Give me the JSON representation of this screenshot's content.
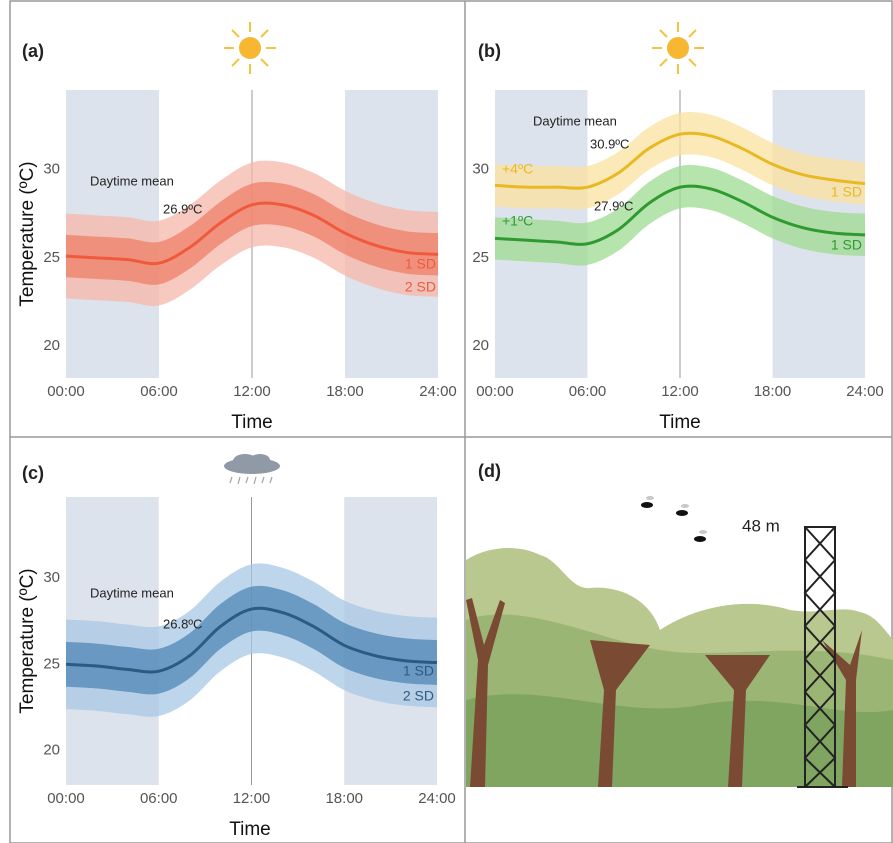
{
  "chart_data": [
    {
      "type": "line",
      "panel_label": "(a)",
      "y_label": "Temperature (ºC)",
      "x_label": "Time",
      "x": [
        0,
        2,
        4,
        6,
        8,
        10,
        12,
        14,
        16,
        18,
        20,
        22,
        24
      ],
      "xlim": [
        0,
        24
      ],
      "ylim": [
        18.2,
        34.5
      ],
      "xticks": [
        {
          "value": 0,
          "label": "00:00"
        },
        {
          "value": 6,
          "label": "06:00"
        },
        {
          "value": 12,
          "label": "12:00"
        },
        {
          "value": 18,
          "label": "18:00"
        },
        {
          "value": 24,
          "label": "24:00"
        }
      ],
      "yticks": [
        20,
        25,
        30
      ],
      "shading": [
        [
          0,
          6
        ],
        [
          18,
          24
        ]
      ],
      "shading_color": "#dde3ec",
      "vline": 12,
      "annotations": [
        "Daytime mean",
        "26.9ºC"
      ],
      "series": [
        {
          "color": "#f05a3c",
          "values": [
            25.1,
            25.0,
            24.9,
            24.7,
            25.6,
            27.0,
            28.0,
            28.0,
            27.4,
            26.4,
            25.7,
            25.3,
            25.2
          ],
          "bands": [
            {
              "name": "1 SD",
              "color": "#ef7f68",
              "lower": [
                23.9,
                23.8,
                23.7,
                23.5,
                24.4,
                25.8,
                26.8,
                26.8,
                26.2,
                25.2,
                24.5,
                24.1,
                24.0
              ],
              "upper": [
                26.3,
                26.2,
                26.1,
                25.9,
                26.8,
                28.2,
                29.2,
                29.2,
                28.6,
                27.6,
                26.9,
                26.5,
                26.4
              ]
            },
            {
              "name": "2 SD",
              "color": "#f6b7a8",
              "lower": [
                22.7,
                22.6,
                22.5,
                22.3,
                23.2,
                24.6,
                25.6,
                25.6,
                25.0,
                24.0,
                23.3,
                22.9,
                22.8
              ],
              "upper": [
                27.5,
                27.4,
                27.3,
                27.1,
                28.0,
                29.4,
                30.4,
                30.4,
                29.8,
                28.8,
                28.1,
                27.7,
                27.6
              ]
            }
          ]
        }
      ]
    },
    {
      "type": "line",
      "panel_label": "(b)",
      "x_label": "Time",
      "x": [
        0,
        2,
        4,
        6,
        8,
        10,
        12,
        14,
        16,
        18,
        20,
        22,
        24
      ],
      "xlim": [
        0,
        24
      ],
      "ylim": [
        18.2,
        34.5
      ],
      "xticks": [
        {
          "value": 0,
          "label": "00:00"
        },
        {
          "value": 6,
          "label": "06:00"
        },
        {
          "value": 12,
          "label": "12:00"
        },
        {
          "value": 18,
          "label": "18:00"
        },
        {
          "value": 24,
          "label": "24:00"
        }
      ],
      "yticks": [
        20,
        25,
        30
      ],
      "shading": [
        [
          0,
          6
        ],
        [
          18,
          24
        ]
      ],
      "shading_color": "#dde3ec",
      "vline": 12,
      "annotations": [
        "Daytime mean",
        "30.9ºC",
        "27.9ºC"
      ],
      "series": [
        {
          "name": "+4ºC",
          "color": "#e8b923",
          "values": [
            29.1,
            29.0,
            29.0,
            29.0,
            29.8,
            31.2,
            32.0,
            31.9,
            31.2,
            30.3,
            29.7,
            29.4,
            29.2
          ],
          "bands": [
            {
              "name": "1 SD",
              "color": "#fbe2a0",
              "lower": [
                27.9,
                27.8,
                27.8,
                27.8,
                28.6,
                30.0,
                30.8,
                30.7,
                30.0,
                29.1,
                28.5,
                28.2,
                28.0
              ],
              "upper": [
                30.3,
                30.2,
                30.2,
                30.2,
                31.0,
                32.4,
                33.2,
                33.1,
                32.4,
                31.5,
                30.9,
                30.6,
                30.4
              ]
            }
          ]
        },
        {
          "name": "+1ºC",
          "color": "#2f9a2f",
          "values": [
            26.1,
            26.0,
            25.9,
            25.8,
            26.6,
            28.1,
            29.0,
            28.9,
            28.2,
            27.3,
            26.7,
            26.4,
            26.3
          ],
          "bands": [
            {
              "name": "1 SD",
              "color": "#9edb92",
              "lower": [
                24.9,
                24.8,
                24.7,
                24.6,
                25.4,
                26.9,
                27.8,
                27.7,
                27.0,
                26.1,
                25.5,
                25.2,
                25.1
              ],
              "upper": [
                27.3,
                27.2,
                27.1,
                27.0,
                27.8,
                29.3,
                30.2,
                30.1,
                29.4,
                28.5,
                27.9,
                27.6,
                27.5
              ]
            }
          ]
        }
      ]
    },
    {
      "type": "line",
      "panel_label": "(c)",
      "y_label": "Temperature (ºC)",
      "x_label": "Time",
      "x": [
        0,
        2,
        4,
        6,
        8,
        10,
        12,
        14,
        16,
        18,
        20,
        22,
        24
      ],
      "xlim": [
        0,
        24
      ],
      "ylim": [
        18.0,
        34.7
      ],
      "xticks": [
        {
          "value": 0,
          "label": "00:00"
        },
        {
          "value": 6,
          "label": "06:00"
        },
        {
          "value": 12,
          "label": "12:00"
        },
        {
          "value": 18,
          "label": "18:00"
        },
        {
          "value": 24,
          "label": "24:00"
        }
      ],
      "yticks": [
        20,
        25,
        30
      ],
      "shading": [
        [
          0,
          6
        ],
        [
          18,
          24
        ]
      ],
      "shading_color": "#dde3ec",
      "vline": 12,
      "annotations": [
        "Daytime mean",
        "26.8ºC"
      ],
      "series": [
        {
          "color": "#2c5a80",
          "values": [
            25.0,
            24.9,
            24.7,
            24.6,
            25.5,
            27.2,
            28.2,
            28.0,
            27.2,
            26.1,
            25.5,
            25.2,
            25.1
          ],
          "bands": [
            {
              "name": "1 SD",
              "color": "#4f86b5",
              "lower": [
                23.7,
                23.6,
                23.4,
                23.3,
                24.2,
                25.9,
                26.9,
                26.7,
                25.9,
                24.8,
                24.2,
                23.9,
                23.8
              ],
              "upper": [
                26.3,
                26.2,
                26.0,
                25.9,
                26.8,
                28.5,
                29.5,
                29.3,
                28.5,
                27.4,
                26.8,
                26.5,
                26.4
              ]
            },
            {
              "name": "2 SD",
              "color": "#a8c8e4",
              "lower": [
                22.4,
                22.3,
                22.1,
                22.0,
                22.9,
                24.6,
                25.6,
                25.4,
                24.6,
                23.5,
                22.9,
                22.6,
                22.5
              ],
              "upper": [
                27.6,
                27.5,
                27.3,
                27.2,
                28.1,
                29.8,
                30.8,
                30.6,
                29.8,
                28.7,
                28.1,
                27.8,
                27.7
              ]
            }
          ]
        }
      ]
    }
  ],
  "illustration": {
    "panel_label": "(d)",
    "height_label": "48 m"
  }
}
